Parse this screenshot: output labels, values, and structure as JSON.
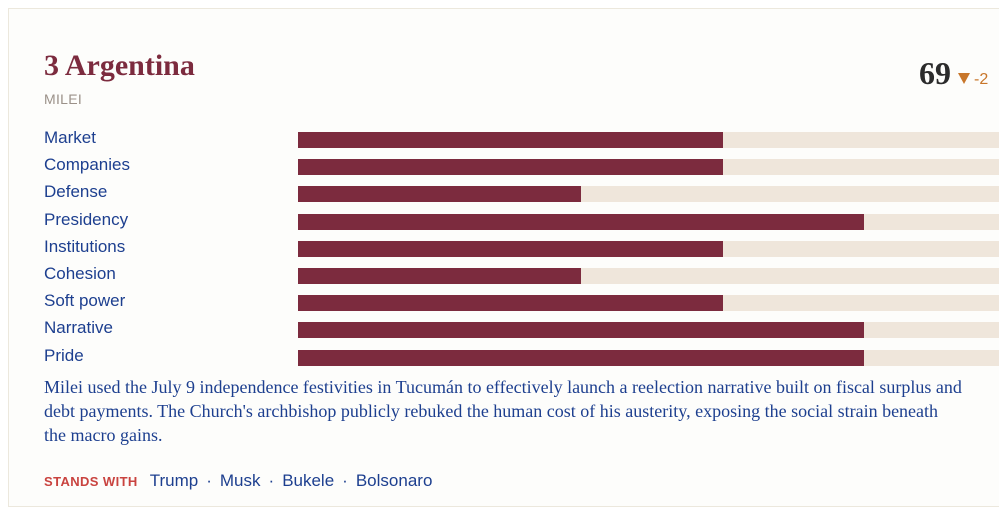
{
  "country": {
    "heading": "3 Argentina",
    "leader": "MILEI",
    "score": "69",
    "delta": "-2",
    "trend_icon": "triangle-down-icon",
    "accent_color": "#7c2b3e",
    "trend_color": "#c8762a"
  },
  "metrics": [
    {
      "label": "Market",
      "value": "3",
      "fraction": 0.6
    },
    {
      "label": "Companies",
      "value": "3",
      "fraction": 0.6
    },
    {
      "label": "Defense",
      "value": "2",
      "fraction": 0.4
    },
    {
      "label": "Presidency",
      "value": "4",
      "fraction": 0.8
    },
    {
      "label": "Institutions",
      "value": "3",
      "fraction": 0.6
    },
    {
      "label": "Cohesion",
      "value": "2",
      "fraction": 0.4
    },
    {
      "label": "Soft power",
      "value": "3",
      "fraction": 0.6
    },
    {
      "label": "Narrative",
      "value": "4",
      "fraction": 0.8
    },
    {
      "label": "Pride",
      "value": "4",
      "fraction": 0.8
    }
  ],
  "summary": "Milei used the July 9 independence festivities in Tucumán to effectively launch a reelection narrative built on fiscal surplus and debt payments. The Church's archbishop publicly rebuked the human cost of his austerity, exposing the social strain beneath the macro gains.",
  "allies": {
    "label": "STANDS WITH",
    "names": [
      "Trump",
      "Musk",
      "Bukele",
      "Bolsonaro"
    ]
  }
}
